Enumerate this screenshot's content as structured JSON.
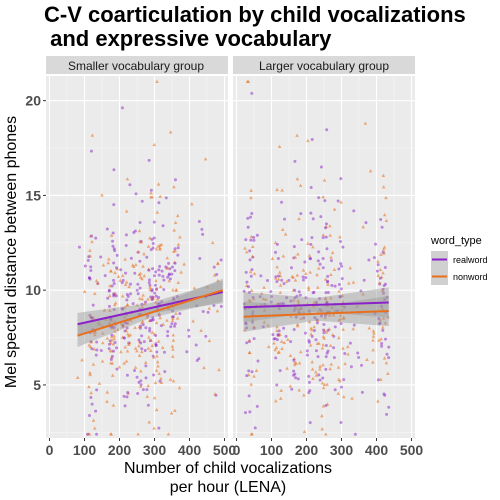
{
  "chart_data": {
    "type": "scatter",
    "title_line1": "C-V coarticulation by child vocalizations",
    "title_line2": " and expressive vocabulary",
    "xlabel_line1": "Number of child vocalizations",
    "xlabel_line2": "per hour (LENA)",
    "ylabel": "Mel spectral distance between phones",
    "xlim": [
      -10,
      510
    ],
    "ylim": [
      2.2,
      21.3
    ],
    "x_ticks": [
      0,
      100,
      200,
      300,
      400,
      500
    ],
    "x_tick_labels": [
      "0",
      "100",
      "200",
      "300",
      "400",
      "500"
    ],
    "y_ticks": [
      5,
      10,
      15,
      20
    ],
    "y_tick_labels": [
      "5",
      "10",
      "15",
      "20"
    ],
    "grid": true,
    "legend": {
      "title": "word_type",
      "position": "right",
      "entries": [
        {
          "label": "realword",
          "color": "#8b22c8"
        },
        {
          "label": "nonword",
          "color": "#e8701c"
        }
      ]
    },
    "colors": {
      "realword": "#8b22c8",
      "nonword": "#e8701c",
      "ci_band": "#999999",
      "panel_bg": "#ebebeb",
      "strip_bg": "#d9d9d9"
    },
    "panels": [
      {
        "name": "Smaller vocabulary group",
        "x_range": [
          80,
          495
        ],
        "density_centers": [
          120,
          180,
          220,
          260,
          290,
          310,
          350
        ],
        "series": [
          {
            "name": "realword",
            "fit": [
              [
                80,
                8.2
              ],
              [
                495,
                9.9
              ]
            ],
            "ci_halfwidth_ends": 0.6
          },
          {
            "name": "nonword",
            "fit": [
              [
                80,
                7.6
              ],
              [
                495,
                10.0
              ]
            ],
            "ci_halfwidth_ends": 0.6
          }
        ]
      },
      {
        "name": "Larger vocabulary group",
        "x_range": [
          20,
          435
        ],
        "density_centers": [
          40,
          120,
          170,
          215,
          245,
          265,
          295,
          420
        ],
        "series": [
          {
            "name": "realword",
            "fit": [
              [
                20,
                9.1
              ],
              [
                435,
                9.35
              ]
            ],
            "ci_halfwidth_ends": 0.8
          },
          {
            "name": "nonword",
            "fit": [
              [
                20,
                8.6
              ],
              [
                435,
                8.9
              ]
            ],
            "ci_halfwidth_ends": 0.8
          }
        ]
      }
    ]
  }
}
